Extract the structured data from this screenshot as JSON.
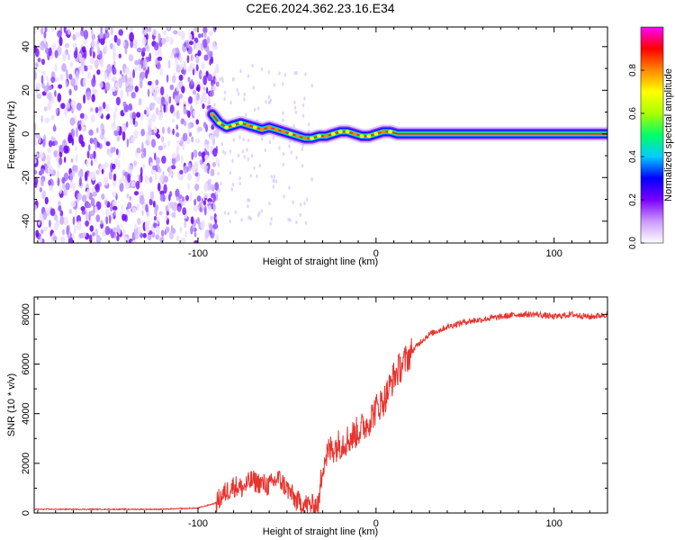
{
  "title": "C2E6.2024.362.23.16.E34",
  "colors": {
    "snr_line": "#e8332e",
    "ridge_core": "#e8332e",
    "axis": "#000000"
  },
  "chart_data": [
    {
      "type": "heatmap",
      "xlabel": "Height of straight line (km)",
      "ylabel": "Frequency (Hz)",
      "xlim": [
        -192,
        130
      ],
      "ylim": [
        -50,
        49
      ],
      "x_ticks": [
        -100,
        0,
        100
      ],
      "x_tick_labels": [
        "-100",
        "0",
        "100"
      ],
      "y_ticks": [
        -40,
        -20,
        0,
        20,
        40
      ],
      "y_tick_labels": [
        "-40",
        "-20",
        "0",
        "20",
        "40"
      ],
      "grid": false,
      "colorbar": {
        "label": "Normalized spectral amplitude",
        "range": [
          0,
          1
        ],
        "ticks": [
          0,
          0.2,
          0.4,
          0.6,
          0.8
        ],
        "tick_labels": [
          "0.0",
          "0.2",
          "0.4",
          "0.6",
          "0.8"
        ],
        "colors": [
          "#ffffff",
          "#cc99ff",
          "#7a00ff",
          "#0000ff",
          "#00ccff",
          "#00ff66",
          "#aaff00",
          "#ffff00",
          "#ff8800",
          "#ff0000",
          "#ff00ff"
        ]
      },
      "noise_region_x": [
        -192,
        -91
      ],
      "ridge": {
        "x": [
          -92,
          -88,
          -84,
          -80,
          -76,
          -72,
          -68,
          -64,
          -60,
          -56,
          -52,
          -48,
          -44,
          -40,
          -36,
          -32,
          -28,
          -24,
          -20,
          -16,
          -12,
          -8,
          -4,
          0,
          4,
          8,
          12,
          130
        ],
        "y": [
          9,
          5,
          3,
          4,
          5,
          4,
          3,
          2,
          3,
          2,
          1,
          0,
          -1,
          -2,
          -2,
          -1,
          -1,
          0,
          1,
          1,
          0,
          -1,
          -1,
          0,
          1,
          1,
          0,
          0
        ]
      }
    },
    {
      "type": "line",
      "xlabel": "Height of straight line (km)",
      "ylabel": "SNR (10 * v/v)",
      "xlim": [
        -192,
        130
      ],
      "ylim": [
        0,
        8700
      ],
      "x_ticks": [
        -100,
        0,
        100
      ],
      "x_tick_labels": [
        "-100",
        "0",
        "100"
      ],
      "y_ticks": [
        0,
        2000,
        4000,
        6000,
        8000
      ],
      "y_tick_labels": [
        "0",
        "2000",
        "4000",
        "6000",
        "8000"
      ],
      "grid": false,
      "series": [
        {
          "x": [
            -192,
            -160,
            -120,
            -100,
            -90,
            -85,
            -80,
            -75,
            -70,
            -65,
            -60,
            -55,
            -50,
            -45,
            -40,
            -35,
            -32,
            -30,
            -28,
            -25,
            -20,
            -15,
            -10,
            -5,
            0,
            5,
            10,
            15,
            20,
            25,
            30,
            40,
            50,
            60,
            70,
            80,
            90,
            100,
            110,
            120,
            130
          ],
          "values": [
            150,
            150,
            150,
            200,
            400,
            800,
            1100,
            1000,
            1300,
            1200,
            1100,
            1400,
            1000,
            500,
            350,
            300,
            400,
            2000,
            2300,
            2600,
            2800,
            3000,
            3300,
            3600,
            4200,
            4600,
            5500,
            6000,
            6500,
            6900,
            7200,
            7500,
            7700,
            7800,
            7900,
            8000,
            8000,
            7900,
            8000,
            7900,
            8000
          ]
        }
      ]
    }
  ]
}
